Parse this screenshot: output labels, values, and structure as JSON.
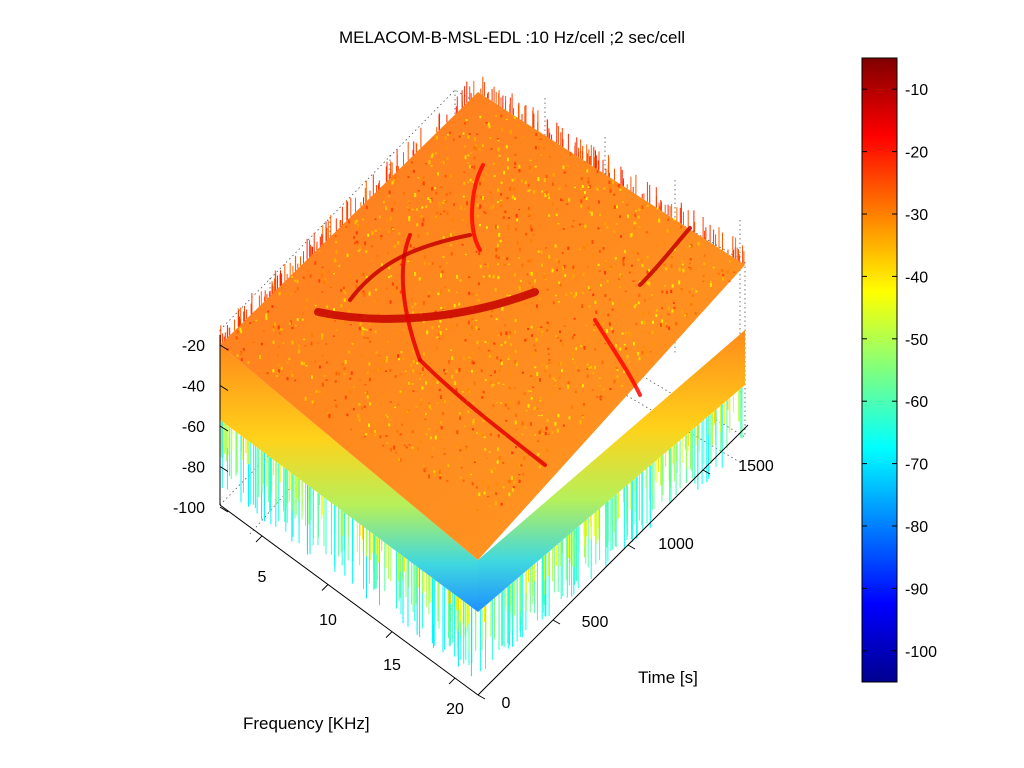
{
  "chart_data": {
    "type": "surface",
    "title": "MELACOM-B-MSL-EDL :10 Hz/cell  ;2 sec/cell",
    "xlabel": "Frequency [KHz]",
    "ylabel": "Time [s]",
    "zlabel": "",
    "xlim": [
      0,
      22
    ],
    "ylim": [
      0,
      1800
    ],
    "zlim": [
      -105,
      -5
    ],
    "x_ticks": [
      "5",
      "10",
      "15",
      "20"
    ],
    "y_ticks": [
      "0",
      "500",
      "1000",
      "1500"
    ],
    "z_ticks": [
      "-20",
      "-40",
      "-60",
      "-80",
      "-100"
    ],
    "colorbar": {
      "colormap": "jet",
      "range": [
        -105,
        -5
      ],
      "ticks": [
        "-10",
        "-20",
        "-30",
        "-40",
        "-50",
        "-60",
        "-70",
        "-80",
        "-90",
        "-100"
      ]
    },
    "surface_level_typical": -32,
    "noise_floor_min": -100,
    "features": [
      {
        "type": "ridge",
        "level": -12
      },
      {
        "type": "ridge",
        "level": -15
      },
      {
        "type": "ridge",
        "level": -18
      }
    ],
    "grid": true
  }
}
